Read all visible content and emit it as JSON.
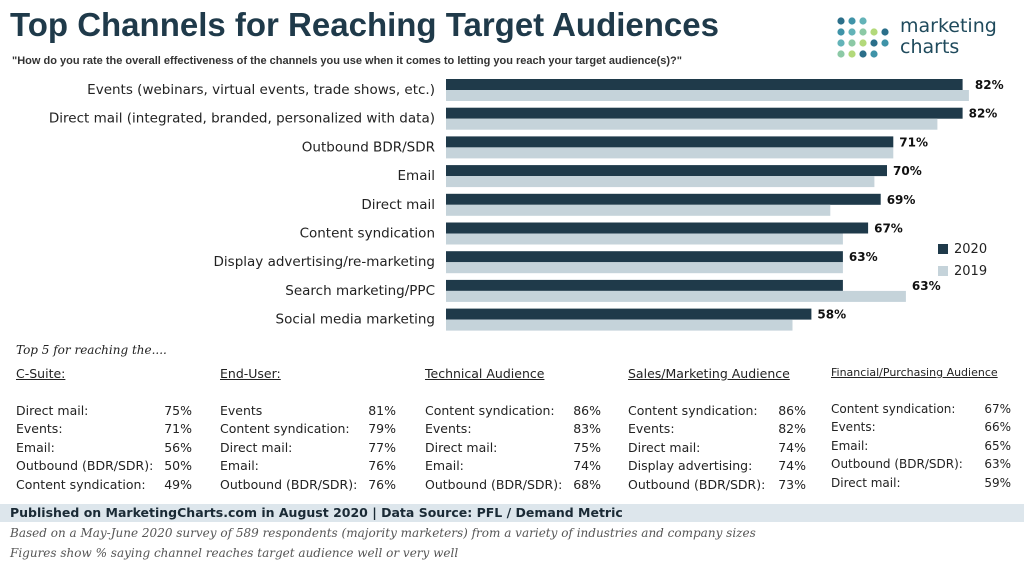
{
  "header": {
    "title": "Top Channels for Reaching Target Audiences",
    "subtitle": "\"How do you rate the overall effectiveness of the channels you use when it comes to letting you reach your target audience(s)?\""
  },
  "logo": {
    "line1": "marketing",
    "line2": "charts"
  },
  "colors": {
    "series_2020": "#1f3a4a",
    "series_2019": "#c5d3da"
  },
  "chart_data": {
    "type": "bar",
    "orientation": "horizontal",
    "categories": [
      "Events (webinars, virtual events, trade shows, etc.)",
      "Direct mail (integrated, branded, personalized with data)",
      "Outbound BDR/SDR",
      "Email",
      "Direct mail",
      "Content syndication",
      "Display advertising/re-marketing",
      "Search marketing/PPC",
      "Social media marketing"
    ],
    "series": [
      {
        "name": "2020",
        "values": [
          82,
          82,
          71,
          70,
          69,
          67,
          63,
          63,
          58
        ],
        "labels": [
          "82%",
          "82%",
          "71%",
          "70%",
          "69%",
          "67%",
          "63%",
          "63%",
          "58%"
        ]
      },
      {
        "name": "2019",
        "values": [
          83,
          78,
          71,
          68,
          61,
          63,
          63,
          73,
          55
        ]
      }
    ],
    "xlim": [
      0,
      100
    ],
    "legend_position": "right",
    "grid": false
  },
  "top5": {
    "title": "Top 5 for reaching the....",
    "columns": [
      {
        "heading": "C-Suite:",
        "items": [
          {
            "label": "Direct mail:",
            "value": "75%"
          },
          {
            "label": "Events:",
            "value": "71%"
          },
          {
            "label": "Email:",
            "value": "56%"
          },
          {
            "label": "Outbound (BDR/SDR):",
            "value": "50%"
          },
          {
            "label": "Content syndication:",
            "value": "49%"
          }
        ]
      },
      {
        "heading": "End-User:",
        "items": [
          {
            "label": "Events",
            "value": "81%"
          },
          {
            "label": "Content syndication:",
            "value": "79%"
          },
          {
            "label": "Direct mail:",
            "value": "77%"
          },
          {
            "label": "Email:",
            "value": "76%"
          },
          {
            "label": "Outbound (BDR/SDR):",
            "value": "76%"
          }
        ]
      },
      {
        "heading": "Technical Audience",
        "items": [
          {
            "label": "Content syndication:",
            "value": "86%"
          },
          {
            "label": "Events:",
            "value": "83%"
          },
          {
            "label": "Direct mail:",
            "value": "75%"
          },
          {
            "label": "Email:",
            "value": "74%"
          },
          {
            "label": "Outbound (BDR/SDR):",
            "value": "68%"
          }
        ]
      },
      {
        "heading": "Sales/Marketing Audience",
        "items": [
          {
            "label": "Content syndication:",
            "value": "86%"
          },
          {
            "label": "Events:",
            "value": "82%"
          },
          {
            "label": "Direct mail:",
            "value": "74%"
          },
          {
            "label": "Display advertising:",
            "value": "74%"
          },
          {
            "label": "Outbound (BDR/SDR):",
            "value": "73%"
          }
        ]
      },
      {
        "heading": "Financial/Purchasing Audience",
        "items": [
          {
            "label": "Content syndication:",
            "value": "67%"
          },
          {
            "label": "Events:",
            "value": "66%"
          },
          {
            "label": "Email:",
            "value": "65%"
          },
          {
            "label": "Outbound (BDR/SDR):",
            "value": "63%"
          },
          {
            "label": "Direct mail:",
            "value": "59%"
          }
        ]
      }
    ]
  },
  "footer": {
    "published": "Published on MarketingCharts.com in August 2020 | Data Source: PFL / Demand Metric",
    "note1": "Based on a May-June 2020 survey of 589 respondents (majority marketers) from a variety of industries and company sizes",
    "note2": "Figures show % saying channel reaches target audience well or very well"
  }
}
